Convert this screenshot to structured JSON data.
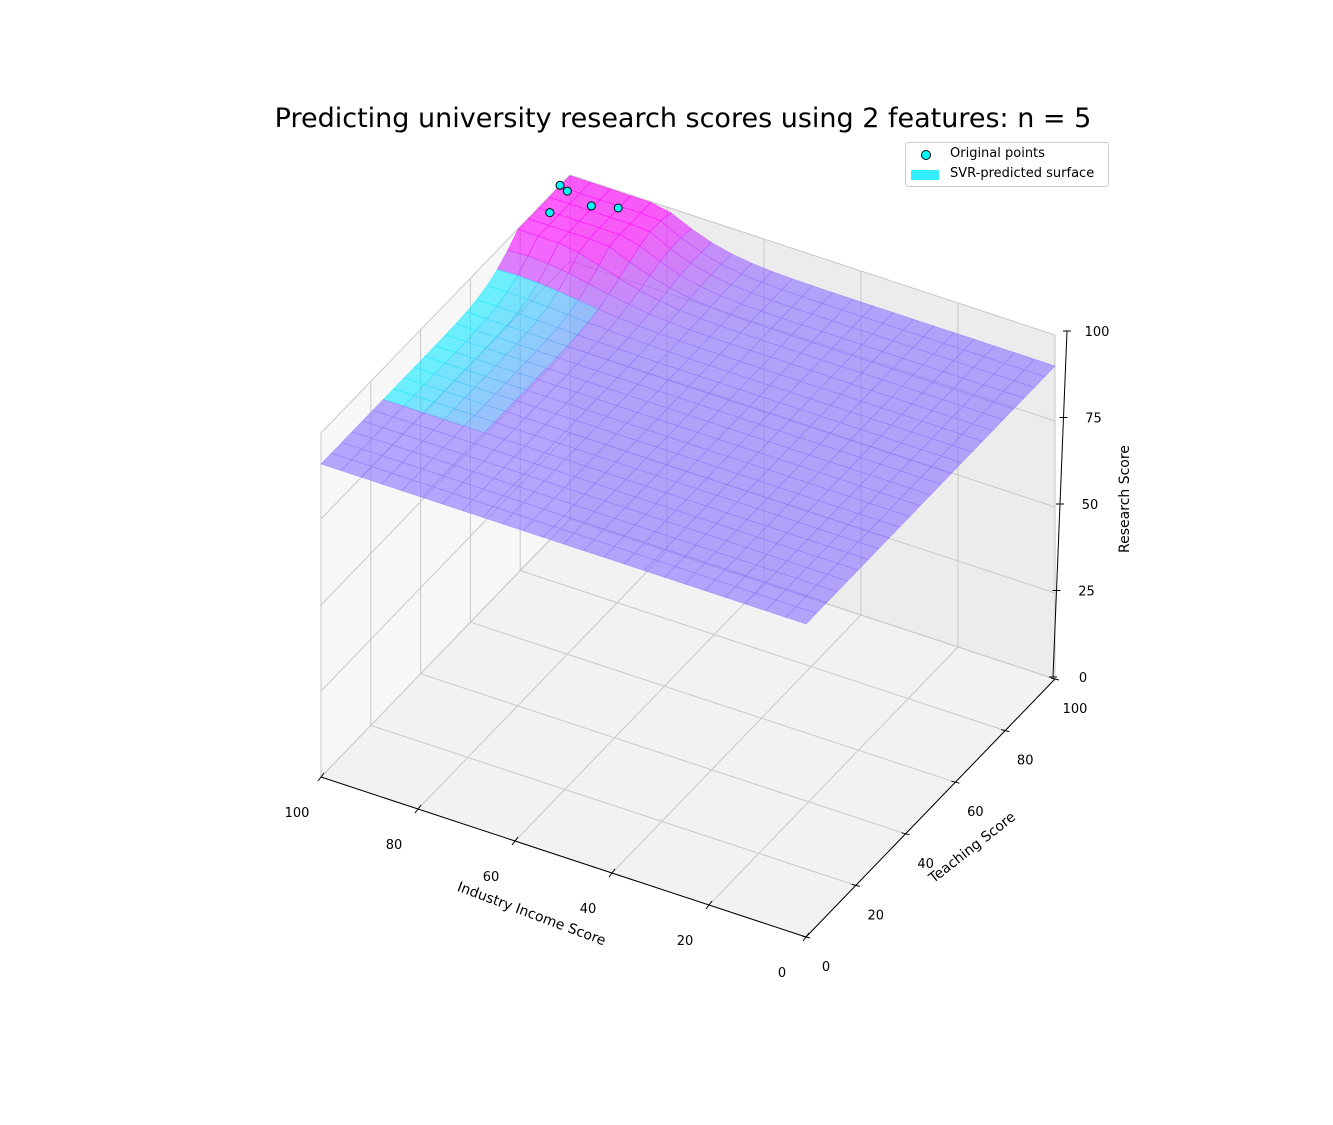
{
  "chart_data": {
    "type": "surface3d",
    "title": "Predicting university research scores using 2 features: n = 5",
    "xlabel": "Industry Income Score",
    "ylabel": "Teaching Score",
    "zlabel": "Research Score",
    "xlim": [
      0,
      100
    ],
    "ylim": [
      0,
      100
    ],
    "zlim": [
      0,
      100
    ],
    "x_ticks": [
      "0",
      "20",
      "40",
      "60",
      "80",
      "100"
    ],
    "y_ticks": [
      "0",
      "20",
      "40",
      "60",
      "80",
      "100"
    ],
    "z_ticks": [
      "0",
      "25",
      "50",
      "75",
      "100"
    ],
    "grid": true,
    "legend_position": "upper-right",
    "series": [
      {
        "name": "Original points",
        "type": "scatter",
        "color": "#00ffff",
        "edgecolor": "#000000",
        "points": [
          {
            "x": 98,
            "y": 88,
            "z": 99
          },
          {
            "x": 88,
            "y": 96,
            "z": 99
          },
          {
            "x": 92,
            "y": 93,
            "z": 100
          },
          {
            "x": 98,
            "y": 95,
            "z": 100
          },
          {
            "x": 100,
            "y": 96,
            "z": 100
          }
        ]
      },
      {
        "name": "SVR-predicted surface",
        "type": "surface",
        "colormap": "cool",
        "baseline_z": 91,
        "peak_z": 99.8,
        "legend_color": "#33eeff"
      }
    ]
  }
}
